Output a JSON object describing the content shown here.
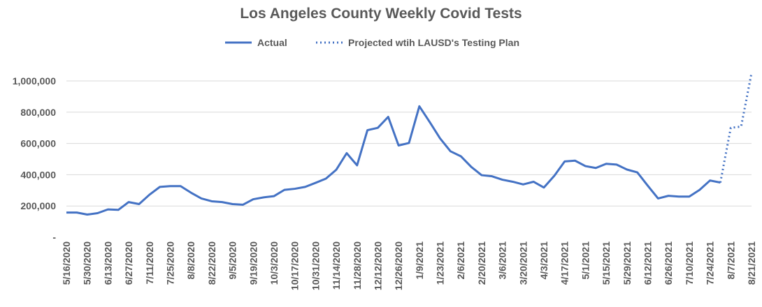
{
  "chart_data": {
    "type": "line",
    "title": "Los Angeles County Weekly Covid Tests",
    "xlabel": "",
    "ylabel": "",
    "ylim": [
      0,
      1000000
    ],
    "yticks": [
      {
        "value": 0,
        "label": "-"
      },
      {
        "value": 200000,
        "label": "200,000"
      },
      {
        "value": 400000,
        "label": "400,000"
      },
      {
        "value": 600000,
        "label": "600,000"
      },
      {
        "value": 800000,
        "label": "800,000"
      },
      {
        "value": 1000000,
        "label": "1,000,000"
      }
    ],
    "xtick_labels": [
      "5/16/2020",
      "5/30/2020",
      "6/13/2020",
      "6/27/2020",
      "7/11/2020",
      "7/25/2020",
      "8/8/2020",
      "8/22/2020",
      "9/5/2020",
      "9/19/2020",
      "10/3/2020",
      "10/17/2020",
      "10/31/2020",
      "11/14/2020",
      "11/28/2020",
      "12/12/2020",
      "12/26/2020",
      "1/9/2021",
      "1/23/2021",
      "2/6/2021",
      "2/20/2021",
      "3/6/2021",
      "3/20/2021",
      "4/3/2021",
      "4/17/2021",
      "5/1/2021",
      "5/15/2021",
      "5/29/2021",
      "6/12/2021",
      "6/26/2021",
      "7/10/2021",
      "7/24/2021",
      "8/7/2021",
      "8/21/2021"
    ],
    "grid": true,
    "legend": "top",
    "colors": {
      "series": "#4472c4",
      "text": "#595959",
      "grid": "#d9d9d9"
    },
    "series": [
      {
        "name": "Actual",
        "style": "solid",
        "start_week": 0,
        "values": [
          158000,
          158000,
          145000,
          154000,
          178000,
          175000,
          225000,
          212000,
          272000,
          322000,
          327000,
          327000,
          285000,
          248000,
          230000,
          225000,
          212000,
          208000,
          243000,
          255000,
          263000,
          303000,
          310000,
          322000,
          348000,
          375000,
          432000,
          538000,
          460000,
          685000,
          700000,
          770000,
          587000,
          603000,
          838000,
          737000,
          632000,
          550000,
          518000,
          450000,
          397000,
          390000,
          368000,
          355000,
          338000,
          355000,
          318000,
          393000,
          485000,
          490000,
          455000,
          443000,
          470000,
          465000,
          433000,
          415000,
          330000,
          248000,
          265000,
          260000,
          260000,
          303000,
          363000,
          350000
        ]
      },
      {
        "name": "Projected wtih LAUSD's Testing Plan",
        "style": "dotted",
        "start_week": 63,
        "values": [
          350000,
          700000,
          708000,
          1050000
        ]
      }
    ]
  }
}
